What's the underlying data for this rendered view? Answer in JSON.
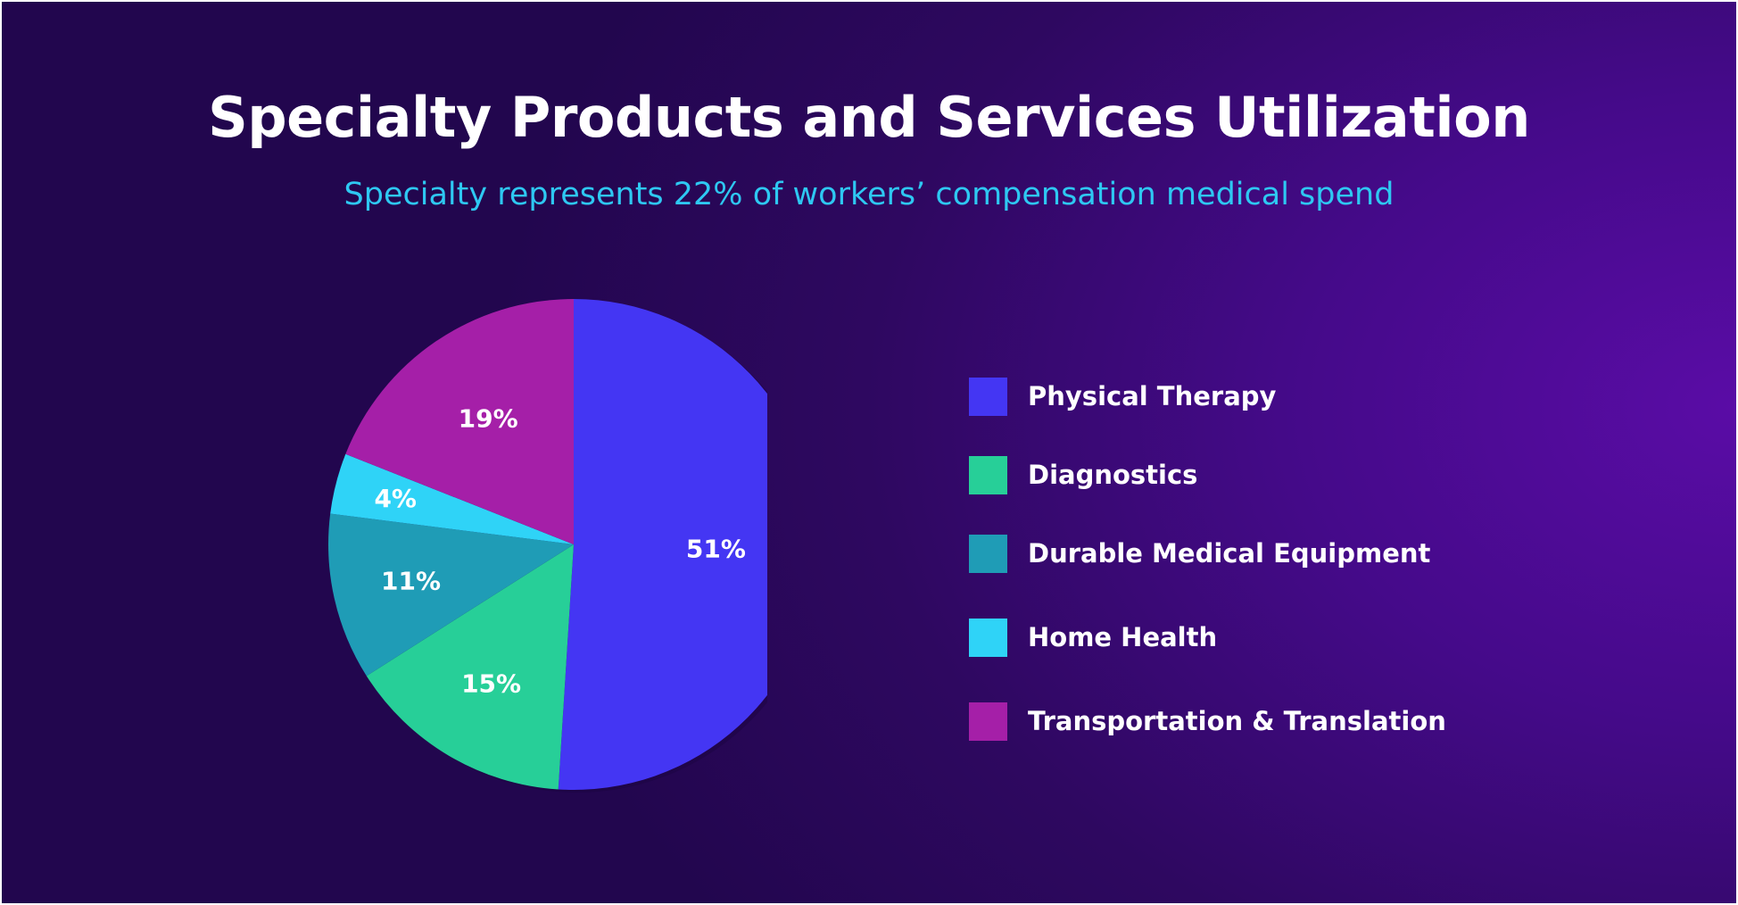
{
  "chart_data": {
    "type": "pie",
    "title": "Specialty Products and Services Utilization",
    "subtitle": "Specialty represents 22% of workers’ compensation medical spend",
    "slices": [
      {
        "name": "Physical Therapy",
        "value": 51,
        "label": "51%",
        "color": "#4436f3"
      },
      {
        "name": "Diagnostics",
        "value": 15,
        "label": "15%",
        "color": "#27cf98"
      },
      {
        "name": "Durable Medical Equipment",
        "value": 11,
        "label": "11%",
        "color": "#1f9cb6"
      },
      {
        "name": "Home Health",
        "value": 4,
        "label": "4%",
        "color": "#2fd3f7"
      },
      {
        "name": "Transportation & Translation",
        "value": 19,
        "label": "19%",
        "color": "#a51fa8"
      }
    ],
    "legend_position": "right",
    "start": "top",
    "direction": "clockwise"
  }
}
